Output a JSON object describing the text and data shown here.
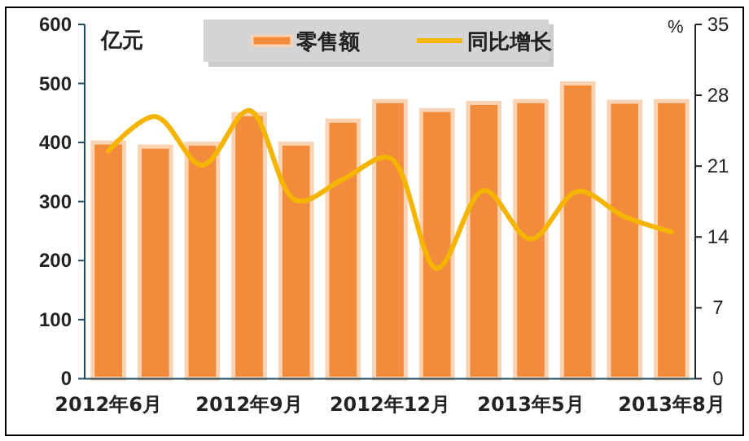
{
  "chart_data": {
    "type": "bar",
    "ylabel": "亿元",
    "y2label": "%",
    "categories": [
      "2012年6月",
      null,
      null,
      "2012年9月",
      null,
      null,
      "2012年12月",
      null,
      null,
      "2013年5月",
      null,
      null,
      "2013年8月"
    ],
    "series": [
      {
        "name": "零售额",
        "color": "#f28c3c",
        "values": [
          400,
          393,
          398,
          448,
          398,
          437,
          470,
          455,
          467,
          470,
          500,
          469,
          470
        ]
      },
      {
        "name": "同比增长",
        "type": "line",
        "axis": "y2",
        "color": "#f5b400",
        "values": [
          22.5,
          25.9,
          21.1,
          26.5,
          17.6,
          19.7,
          21.8,
          10.9,
          18.6,
          13.8,
          18.5,
          16.0,
          14.5
        ]
      }
    ],
    "ylim": [
      0,
      600
    ],
    "yticks": [
      0,
      100,
      200,
      300,
      400,
      500,
      600
    ],
    "y2lim": [
      0,
      35
    ],
    "y2ticks": [
      0,
      7,
      14,
      21,
      28,
      35
    ],
    "legend": "top",
    "grid": false
  }
}
